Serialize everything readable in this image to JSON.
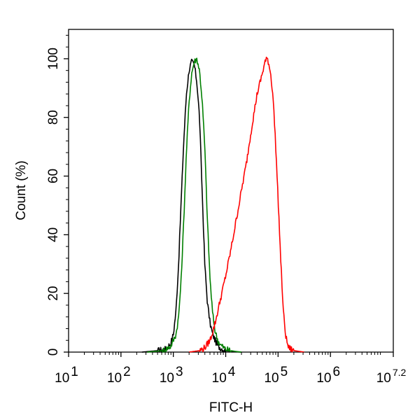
{
  "chart_data": {
    "type": "line",
    "title": "",
    "xlabel": "FITC-H",
    "ylabel": "Count  (%)",
    "xscale": "log",
    "xlim_log10": [
      1,
      7.2
    ],
    "ylim": [
      0,
      110
    ],
    "grid": false,
    "legend": "none",
    "x_ticks": [
      {
        "base": "10",
        "exp": "1",
        "value": 1
      },
      {
        "base": "10",
        "exp": "2",
        "value": 2
      },
      {
        "base": "10",
        "exp": "3",
        "value": 3
      },
      {
        "base": "10",
        "exp": "4",
        "value": 4
      },
      {
        "base": "10",
        "exp": "5",
        "value": 5
      },
      {
        "base": "10",
        "exp": "6",
        "value": 6
      },
      {
        "base": "10",
        "exp": "7.2",
        "value": 7.2
      }
    ],
    "y_ticks": [
      "0",
      "20",
      "40",
      "60",
      "80",
      "100"
    ],
    "series": [
      {
        "color": "#000000",
        "x_log10": [
          2.4,
          2.7,
          2.85,
          2.95,
          3.0,
          3.05,
          3.1,
          3.15,
          3.2,
          3.25,
          3.3,
          3.35,
          3.4,
          3.45,
          3.5,
          3.55,
          3.6,
          3.65,
          3.7,
          3.75,
          3.8,
          3.85,
          3.9,
          4.0,
          4.1,
          4.3
        ],
        "y": [
          0,
          0.5,
          1,
          3,
          6,
          14,
          30,
          52,
          72,
          88,
          96,
          99,
          98,
          92,
          80,
          55,
          30,
          17,
          10,
          6,
          4,
          2,
          1.5,
          0.5,
          0.2,
          0
        ]
      },
      {
        "color": "#008000",
        "x_log10": [
          2.5,
          2.8,
          2.95,
          3.05,
          3.1,
          3.15,
          3.2,
          3.25,
          3.3,
          3.35,
          3.4,
          3.45,
          3.5,
          3.55,
          3.6,
          3.65,
          3.7,
          3.75,
          3.8,
          3.85,
          3.9,
          4.0,
          4.1,
          4.2,
          4.3
        ],
        "y": [
          0,
          0.5,
          2,
          6,
          12,
          25,
          45,
          68,
          85,
          95,
          99,
          100,
          96,
          86,
          70,
          45,
          25,
          13,
          7,
          4,
          2.5,
          1,
          0.5,
          0.2,
          0
        ]
      },
      {
        "color": "#ff0000",
        "x_log10": [
          3.3,
          3.5,
          3.6,
          3.7,
          3.8,
          3.9,
          4.0,
          4.1,
          4.2,
          4.3,
          4.4,
          4.5,
          4.6,
          4.7,
          4.75,
          4.8,
          4.85,
          4.9,
          4.95,
          5.0,
          5.05,
          5.1,
          5.15,
          5.2,
          5.3,
          5.5
        ],
        "y": [
          0,
          0.5,
          1.5,
          4,
          10,
          18,
          26,
          35,
          45,
          55,
          65,
          77,
          88,
          95,
          99,
          100,
          96,
          88,
          72,
          52,
          32,
          14,
          5,
          1.5,
          0.5,
          0
        ]
      }
    ]
  }
}
